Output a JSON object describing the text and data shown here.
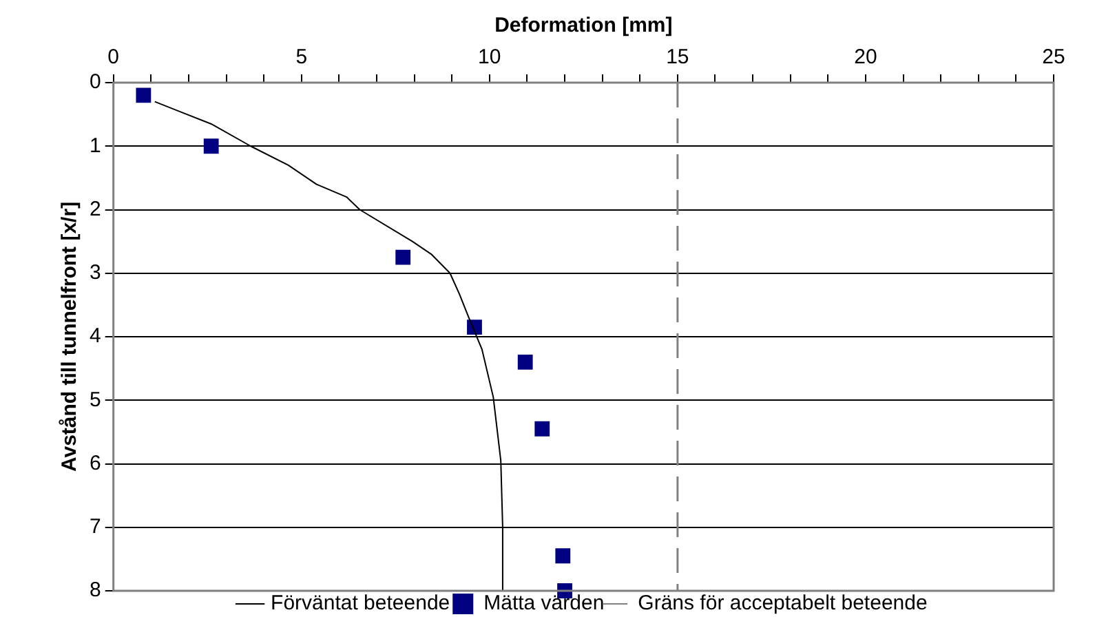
{
  "chart_data": {
    "type": "scatter",
    "xlabel": "Deformation [mm]",
    "ylabel": "Avstånd till tunnelfront [x/r]",
    "series": [
      {
        "name": "Förväntat beteende",
        "type": "line",
        "color": "#000000",
        "marker": "none",
        "x": [
          1.1,
          2.6,
          3.65,
          4.65,
          5.4,
          6.2,
          6.55,
          7.95,
          8.45,
          8.95,
          9.2,
          9.45,
          9.8,
          10.1,
          10.3,
          10.35,
          10.35
        ],
        "values": [
          0.3,
          0.65,
          1.0,
          1.3,
          1.6,
          1.8,
          2.0,
          2.5,
          2.7,
          3.0,
          3.33,
          3.7,
          4.2,
          4.95,
          5.95,
          7.0,
          8.0
        ]
      },
      {
        "name": "Mätta värden",
        "type": "scatter",
        "color": "#000080",
        "marker": "square",
        "x": [
          0.8,
          2.6,
          7.7,
          9.6,
          10.95,
          11.4,
          11.95,
          12.0
        ],
        "values": [
          0.2,
          1.0,
          2.75,
          3.85,
          4.4,
          5.45,
          7.45,
          8.0
        ]
      }
    ],
    "ref_lines": [
      {
        "axis": "x",
        "value": 15,
        "label": "Gräns för acceptabelt beteende",
        "color": "#808080",
        "line_style": "dashed"
      }
    ],
    "xlim": [
      0,
      25
    ],
    "xticks": [
      0,
      {
        "value": 1,
        "label": null
      },
      {
        "value": 2,
        "label": null
      },
      {
        "value": 3,
        "label": null
      },
      {
        "value": 4,
        "label": null
      },
      5,
      {
        "value": 6,
        "label": null
      },
      {
        "value": 7,
        "label": null
      },
      {
        "value": 8,
        "label": null
      },
      {
        "value": 9,
        "label": null
      },
      10,
      {
        "value": 11,
        "label": null
      },
      {
        "value": 12,
        "label": null
      },
      {
        "value": 13,
        "label": null
      },
      {
        "value": 14,
        "label": null
      },
      15,
      {
        "value": 16,
        "label": null
      },
      {
        "value": 17,
        "label": null
      },
      {
        "value": 18,
        "label": null
      },
      {
        "value": 19,
        "label": null
      },
      20,
      {
        "value": 21,
        "label": null
      },
      {
        "value": 22,
        "label": null
      },
      {
        "value": 23,
        "label": null
      },
      {
        "value": 24,
        "label": null
      },
      25
    ],
    "ylim": [
      8,
      0
    ],
    "yticks": [
      0,
      1,
      2,
      3,
      4,
      5,
      6,
      7,
      8
    ],
    "grid": "y",
    "legend": "bottom"
  }
}
